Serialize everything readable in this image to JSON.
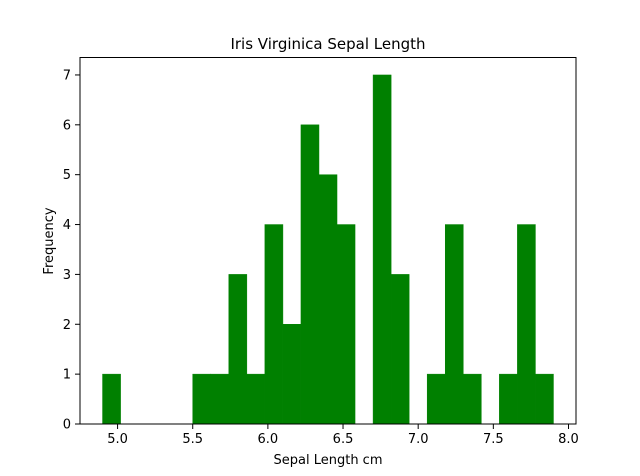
{
  "chart_data": {
    "type": "bar",
    "title": "Iris Virginica Sepal Length",
    "xlabel": "Sepal Length cm",
    "ylabel": "Frequency",
    "bar_color": "#008000",
    "xlim": [
      4.75,
      8.05
    ],
    "ylim": [
      0,
      7.35
    ],
    "xticks": [
      5.0,
      5.5,
      6.0,
      6.5,
      7.0,
      7.5,
      8.0
    ],
    "xtick_labels": [
      "5.0",
      "5.5",
      "6.0",
      "6.5",
      "7.0",
      "7.5",
      "8.0"
    ],
    "yticks": [
      0,
      1,
      2,
      3,
      4,
      5,
      6,
      7
    ],
    "ytick_labels": [
      "0",
      "1",
      "2",
      "3",
      "4",
      "5",
      "6",
      "7"
    ],
    "bins": [
      {
        "x0": 4.9,
        "x1": 5.02,
        "count": 1
      },
      {
        "x0": 5.02,
        "x1": 5.14,
        "count": 0
      },
      {
        "x0": 5.14,
        "x1": 5.26,
        "count": 0
      },
      {
        "x0": 5.26,
        "x1": 5.38,
        "count": 0
      },
      {
        "x0": 5.38,
        "x1": 5.5,
        "count": 0
      },
      {
        "x0": 5.5,
        "x1": 5.62,
        "count": 1
      },
      {
        "x0": 5.62,
        "x1": 5.74,
        "count": 1
      },
      {
        "x0": 5.74,
        "x1": 5.86,
        "count": 3
      },
      {
        "x0": 5.86,
        "x1": 5.98,
        "count": 1
      },
      {
        "x0": 5.98,
        "x1": 6.1,
        "count": 4
      },
      {
        "x0": 6.1,
        "x1": 6.22,
        "count": 2
      },
      {
        "x0": 6.22,
        "x1": 6.34,
        "count": 6
      },
      {
        "x0": 6.34,
        "x1": 6.46,
        "count": 5
      },
      {
        "x0": 6.46,
        "x1": 6.58,
        "count": 4
      },
      {
        "x0": 6.58,
        "x1": 6.7,
        "count": 0
      },
      {
        "x0": 6.7,
        "x1": 6.82,
        "count": 7
      },
      {
        "x0": 6.82,
        "x1": 6.94,
        "count": 3
      },
      {
        "x0": 6.94,
        "x1": 7.06,
        "count": 0
      },
      {
        "x0": 7.06,
        "x1": 7.18,
        "count": 1
      },
      {
        "x0": 7.18,
        "x1": 7.3,
        "count": 4
      },
      {
        "x0": 7.3,
        "x1": 7.42,
        "count": 1
      },
      {
        "x0": 7.42,
        "x1": 7.54,
        "count": 0
      },
      {
        "x0": 7.54,
        "x1": 7.66,
        "count": 1
      },
      {
        "x0": 7.66,
        "x1": 7.78,
        "count": 4
      },
      {
        "x0": 7.78,
        "x1": 7.9,
        "count": 1
      }
    ]
  }
}
